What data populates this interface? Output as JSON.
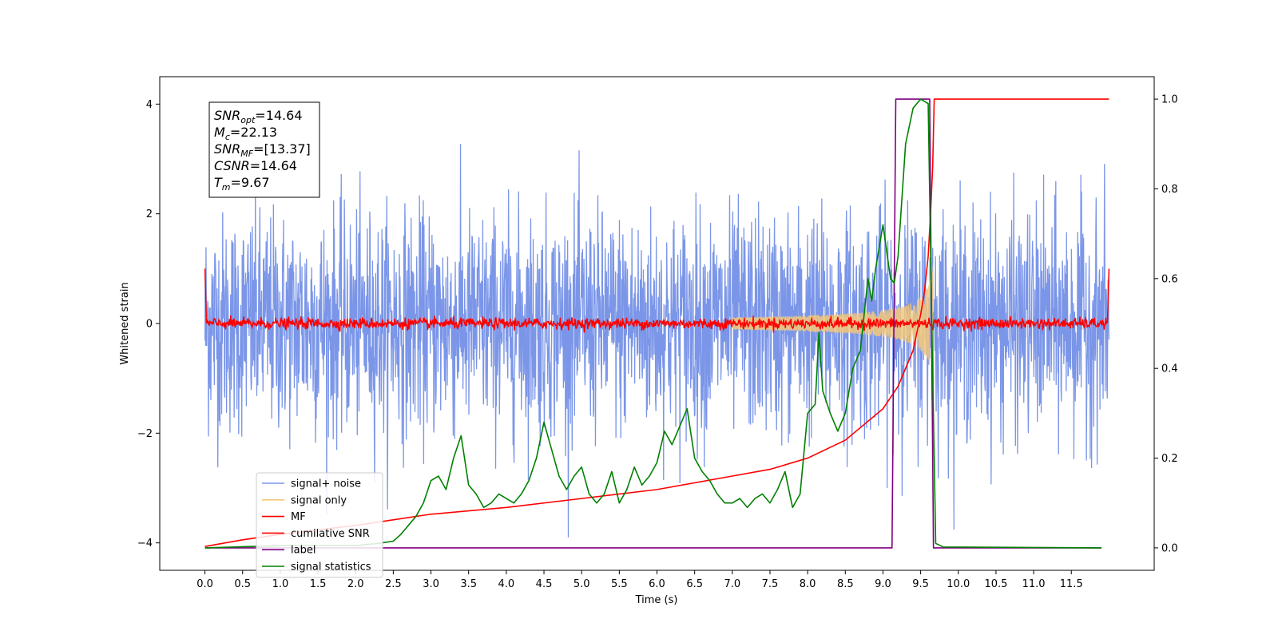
{
  "chart_data": {
    "type": "line",
    "xlabel": "Time (s)",
    "ylabel": "Whitened strain",
    "xlim": [
      -0.6,
      12.6
    ],
    "ylim_left": [
      -4.5,
      4.5
    ],
    "ylim_right": [
      -0.05,
      1.05
    ],
    "x_ticks": [
      0.0,
      0.5,
      1.0,
      1.5,
      2.0,
      2.5,
      3.0,
      3.5,
      4.0,
      4.5,
      5.0,
      5.5,
      6.0,
      6.5,
      7.0,
      7.5,
      8.0,
      8.5,
      9.0,
      9.5,
      10.0,
      10.5,
      11.0,
      11.5
    ],
    "x_tick_labels": [
      "0.0",
      "0.5",
      "1.0",
      "1.5",
      "2.0",
      "2.5",
      "3.0",
      "3.5",
      "4.0",
      "4.5",
      "5.0",
      "5.5",
      "6.0",
      "6.5",
      "7.0",
      "7.5",
      "8.0",
      "8.5",
      "9.0",
      "9.5",
      "10.0",
      "10.5",
      "11.0",
      "11.5"
    ],
    "y_ticks_left": [
      -4,
      -2,
      0,
      2,
      4
    ],
    "y_tick_labels_left": [
      "−4",
      "−2",
      "0",
      "2",
      "4"
    ],
    "y_ticks_right": [
      0.0,
      0.2,
      0.4,
      0.6,
      0.8,
      1.0
    ],
    "y_tick_labels_right": [
      "0.0",
      "0.2",
      "0.4",
      "0.6",
      "0.8",
      "1.0"
    ],
    "annotation": {
      "lines": [
        {
          "main": "SNR",
          "sub": "opt",
          "rest": "=14.64"
        },
        {
          "main": "M",
          "sub": "c",
          "rest": "=22.13"
        },
        {
          "main": "SNR",
          "sub": "MF",
          "rest": "=[13.37]"
        },
        {
          "main": "CSNR",
          "sub": "",
          "rest": "=14.64"
        },
        {
          "main": "T",
          "sub": "m",
          "rest": "=9.67"
        }
      ]
    },
    "legend": {
      "placement": "lower-left",
      "entries": [
        {
          "label": "signal+ noise",
          "color": "#7b96e8"
        },
        {
          "label": "signal only",
          "color": "#f5c87a"
        },
        {
          "label": "MF",
          "color": "#ff0000"
        },
        {
          "label": "cumilative SNR",
          "color": "#ff0000"
        },
        {
          "label": "label",
          "color": "#800080"
        },
        {
          "label": "signal statistics",
          "color": "#008000"
        }
      ]
    },
    "series": [
      {
        "name": "signal+ noise",
        "axis": "left",
        "kind": "noise",
        "color": "#7b96e8",
        "x_range": [
          0.0,
          12.0
        ],
        "amplitude_sigma": 1.0
      },
      {
        "name": "signal only",
        "axis": "left",
        "kind": "chirp",
        "color": "#f5c87a",
        "x_range": [
          7.0,
          9.67
        ],
        "peak_time": 9.67,
        "peak_amplitude": 1.1
      },
      {
        "name": "MF",
        "axis": "left",
        "kind": "mf",
        "color": "#ff0000",
        "x": [
          0.0,
          0.02,
          11.98,
          12.0
        ],
        "y": [
          1.0,
          0.0,
          0.0,
          1.0
        ],
        "noise_amplitude": 0.05
      },
      {
        "name": "cumilative SNR",
        "axis": "right",
        "color": "#ff0000",
        "x": [
          0.0,
          0.5,
          1.0,
          2.0,
          3.0,
          4.0,
          5.0,
          6.0,
          7.0,
          7.5,
          8.0,
          8.5,
          9.0,
          9.2,
          9.4,
          9.5,
          9.55,
          9.6,
          9.63,
          9.66,
          9.68,
          12.0
        ],
        "y": [
          0.003,
          0.018,
          0.03,
          0.05,
          0.075,
          0.09,
          0.11,
          0.13,
          0.16,
          0.175,
          0.2,
          0.24,
          0.31,
          0.36,
          0.44,
          0.52,
          0.57,
          0.65,
          0.74,
          0.85,
          1.0,
          1.0
        ]
      },
      {
        "name": "label",
        "axis": "right",
        "color": "#800080",
        "x": [
          0.0,
          9.12,
          9.17,
          9.62,
          9.67,
          11.9
        ],
        "y": [
          0.0,
          0.0,
          1.0,
          1.0,
          0.0,
          0.0
        ]
      },
      {
        "name": "signal statistics",
        "axis": "right",
        "color": "#008000",
        "x": [
          0.0,
          1.0,
          2.0,
          2.3,
          2.5,
          2.6,
          2.7,
          2.8,
          2.9,
          3.0,
          3.1,
          3.2,
          3.3,
          3.4,
          3.5,
          3.6,
          3.7,
          3.8,
          3.9,
          4.0,
          4.1,
          4.2,
          4.3,
          4.4,
          4.5,
          4.6,
          4.7,
          4.8,
          4.9,
          5.0,
          5.1,
          5.2,
          5.3,
          5.4,
          5.5,
          5.6,
          5.7,
          5.8,
          5.9,
          6.0,
          6.1,
          6.2,
          6.3,
          6.4,
          6.5,
          6.6,
          6.7,
          6.8,
          6.9,
          7.0,
          7.1,
          7.2,
          7.3,
          7.4,
          7.5,
          7.6,
          7.7,
          7.8,
          7.9,
          8.0,
          8.1,
          8.15,
          8.2,
          8.3,
          8.4,
          8.5,
          8.6,
          8.7,
          8.8,
          8.85,
          8.9,
          9.0,
          9.1,
          9.15,
          9.2,
          9.3,
          9.4,
          9.5,
          9.6,
          9.65,
          9.7,
          9.8,
          11.9
        ],
        "y": [
          0.0,
          0.005,
          0.005,
          0.01,
          0.015,
          0.03,
          0.05,
          0.07,
          0.1,
          0.15,
          0.16,
          0.13,
          0.2,
          0.25,
          0.14,
          0.12,
          0.09,
          0.1,
          0.12,
          0.11,
          0.1,
          0.12,
          0.15,
          0.2,
          0.28,
          0.22,
          0.16,
          0.13,
          0.16,
          0.18,
          0.12,
          0.1,
          0.12,
          0.17,
          0.1,
          0.13,
          0.18,
          0.14,
          0.16,
          0.19,
          0.26,
          0.23,
          0.27,
          0.31,
          0.2,
          0.17,
          0.15,
          0.12,
          0.1,
          0.1,
          0.11,
          0.09,
          0.11,
          0.12,
          0.1,
          0.13,
          0.17,
          0.09,
          0.12,
          0.3,
          0.32,
          0.48,
          0.35,
          0.3,
          0.26,
          0.3,
          0.4,
          0.44,
          0.6,
          0.55,
          0.62,
          0.72,
          0.6,
          0.59,
          0.65,
          0.9,
          0.98,
          1.0,
          0.99,
          0.48,
          0.01,
          0.002,
          0.0
        ]
      }
    ]
  }
}
